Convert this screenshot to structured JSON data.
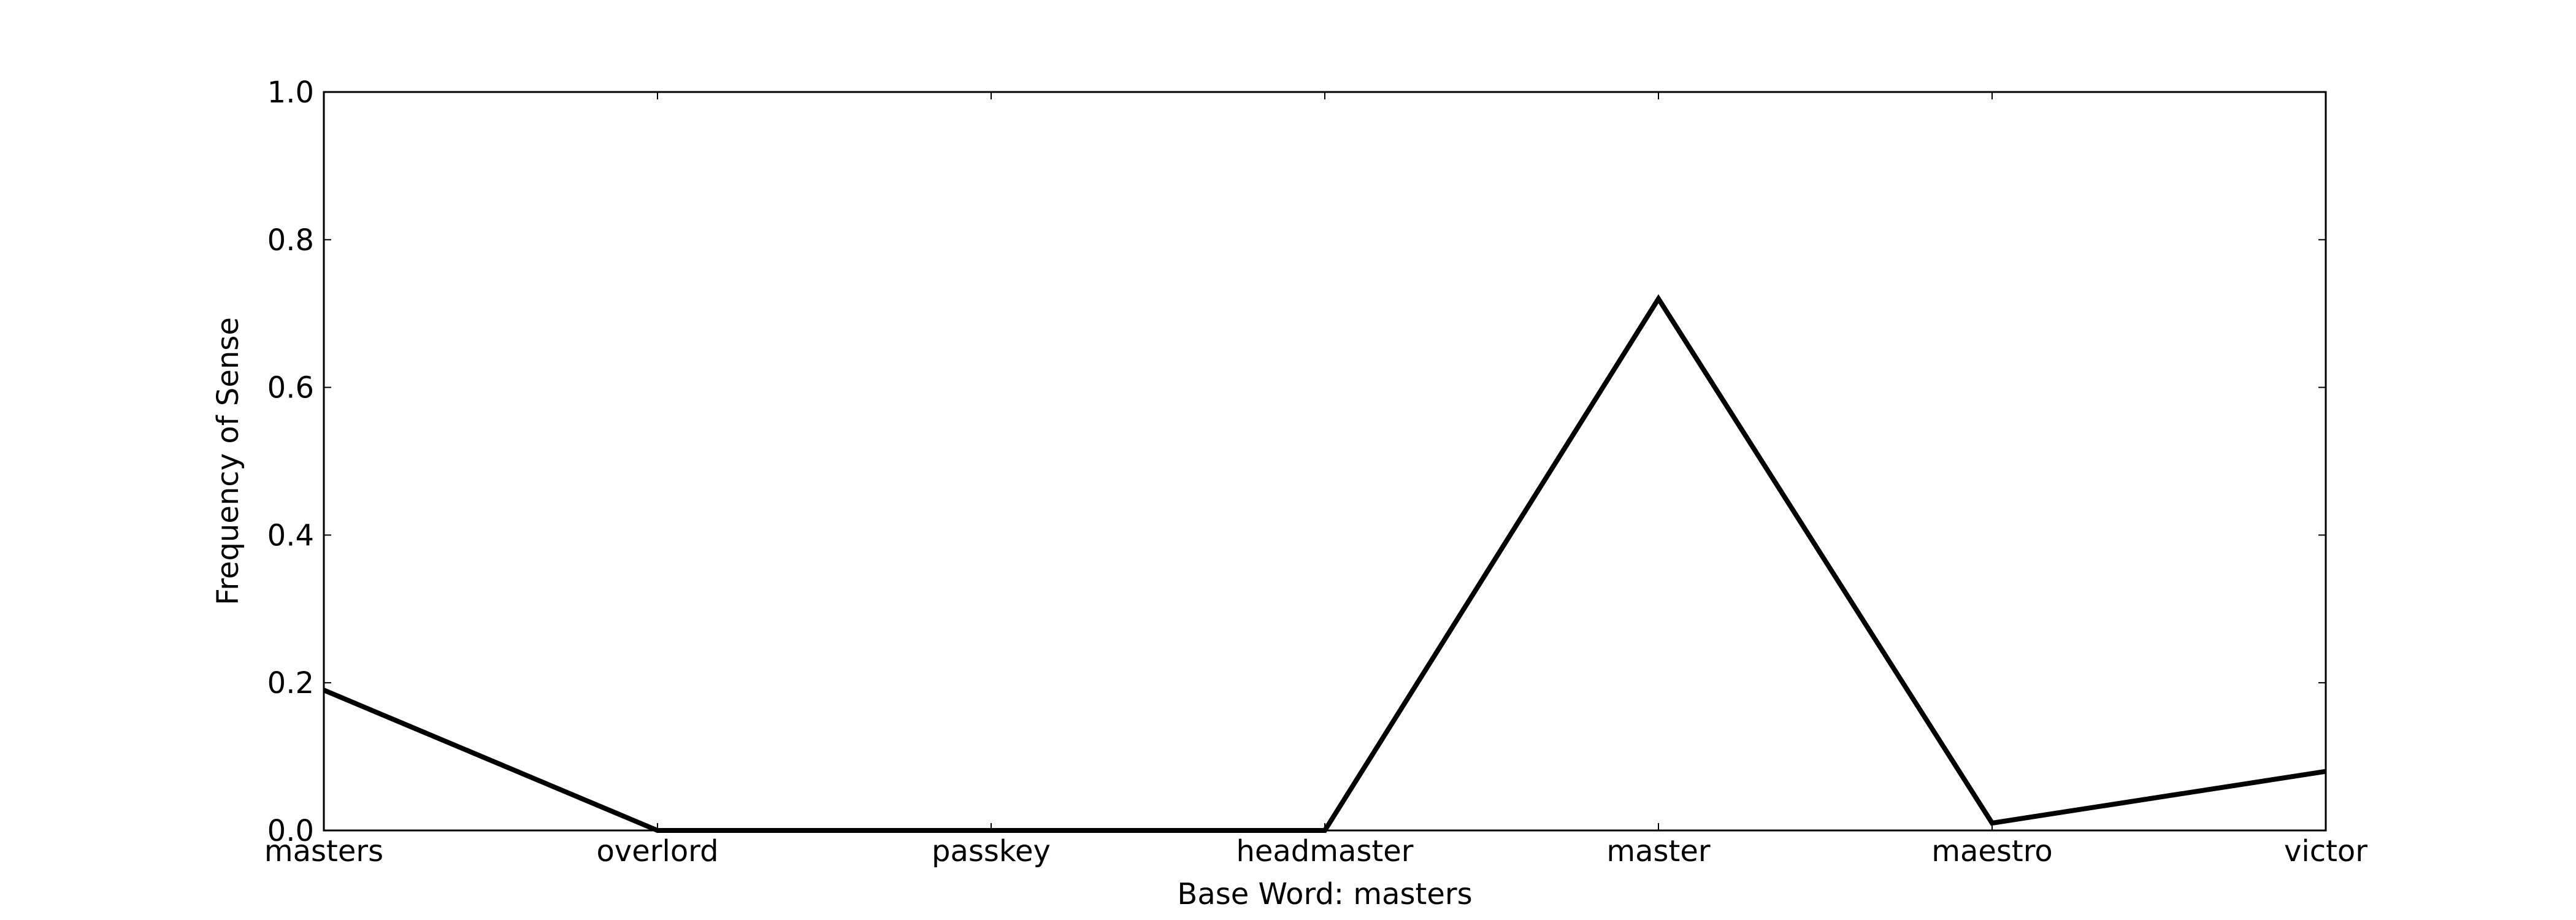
{
  "chart_data": {
    "type": "line",
    "title": "",
    "xlabel": "Base Word: masters",
    "ylabel": "Frequency of Sense",
    "categories": [
      "masters",
      "overlord",
      "passkey",
      "headmaster",
      "master",
      "maestro",
      "victor"
    ],
    "series": [
      {
        "values": [
          0.19,
          0.0,
          0.0,
          0.0,
          0.72,
          0.01,
          0.08
        ]
      }
    ],
    "ylim": [
      0.0,
      1.0
    ],
    "yticks": [
      "0.0",
      "0.2",
      "0.4",
      "0.6",
      "0.8",
      "1.0"
    ],
    "grid": false,
    "legend": "none",
    "colors": {
      "line": "#000000",
      "frame": "#000000",
      "background": "#ffffff"
    }
  }
}
